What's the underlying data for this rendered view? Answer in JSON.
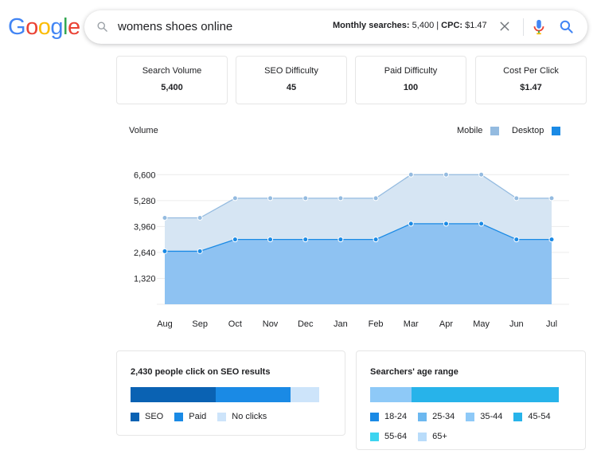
{
  "logo": {
    "text": "Google"
  },
  "search": {
    "query": "womens shoes online",
    "monthly_label": "Monthly searches:",
    "monthly_value": "5,400",
    "separator": "|",
    "cpc_label": "CPC:",
    "cpc_value": "$1.47"
  },
  "metrics": [
    {
      "label": "Search Volume",
      "value": "5,400"
    },
    {
      "label": "SEO Difficulty",
      "value": "45"
    },
    {
      "label": "Paid Difficulty",
      "value": "100"
    },
    {
      "label": "Cost Per Click",
      "value": "$1.47"
    }
  ],
  "chart_data": {
    "type": "area",
    "title": "Volume",
    "categories": [
      "Aug",
      "Sep",
      "Oct",
      "Nov",
      "Dec",
      "Jan",
      "Feb",
      "Mar",
      "Apr",
      "May",
      "Jun",
      "Jul"
    ],
    "yticks": [
      "1,320",
      "2,640",
      "3,960",
      "5,280",
      "6,600"
    ],
    "ylim": [
      0,
      7260
    ],
    "series": [
      {
        "name": "Mobile",
        "color": "#94bbe0",
        "fill": "#d6e5f3",
        "values": [
          4400,
          4400,
          5400,
          5400,
          5400,
          5400,
          5400,
          6600,
          6600,
          6600,
          5400,
          5400
        ]
      },
      {
        "name": "Desktop",
        "color": "#1a8ae5",
        "fill": "#8ec2f2",
        "values": [
          2700,
          2700,
          3300,
          3300,
          3300,
          3300,
          3300,
          4100,
          4100,
          4100,
          3300,
          3300
        ]
      }
    ],
    "legend_position": "top-right",
    "grid": true
  },
  "seo_card": {
    "title": "2,430 people click on SEO results",
    "segments": [
      {
        "label": "SEO",
        "color": "#0a62b3",
        "share": 0.45
      },
      {
        "label": "Paid",
        "color": "#1a8ae5",
        "share": 0.4
      },
      {
        "label": "No clicks",
        "color": "#cde4fa",
        "share": 0.15
      }
    ]
  },
  "age_card": {
    "title": "Searchers' age range",
    "segments": [
      {
        "label": "18-24",
        "color": "#1a8ae5",
        "share": 0.0
      },
      {
        "label": "25-34",
        "color": "#6cb8f0",
        "share": 0.0
      },
      {
        "label": "35-44",
        "color": "#8ec9f7",
        "share": 0.22
      },
      {
        "label": "45-54",
        "color": "#27b3ea",
        "share": 0.78
      },
      {
        "label": "55-64",
        "color": "#3dd4f0",
        "share": 0.0
      },
      {
        "label": "65+",
        "color": "#b9dcfa",
        "share": 0.0
      }
    ]
  }
}
